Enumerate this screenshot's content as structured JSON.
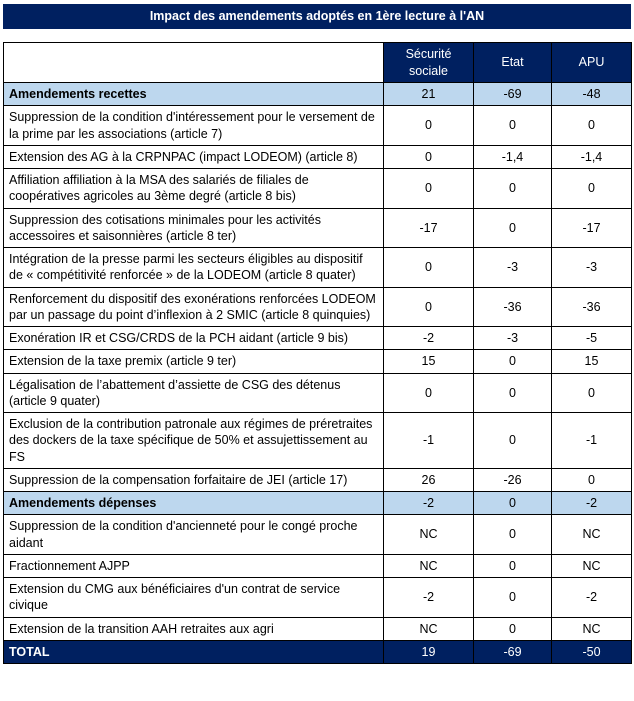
{
  "title": "Impact des amendements adoptés en 1ère lecture à l'AN",
  "colors": {
    "header_navy": "#002060",
    "section_blue": "#BDD7EE",
    "border_black": "#000000"
  },
  "table": {
    "columns": [
      "Sécurité sociale",
      "Etat",
      "APU"
    ],
    "rows": [
      {
        "type": "section",
        "label": "Amendements recettes",
        "values": [
          "21",
          "-69",
          "-48"
        ]
      },
      {
        "type": "normal",
        "label": "Suppression de la condition d'intéressement pour le versement de la prime par les associations (article 7)",
        "values": [
          "0",
          "0",
          "0"
        ]
      },
      {
        "type": "normal",
        "label": "Extension des AG à la CRPNPAC (impact LODEOM) (article 8)",
        "values": [
          "0",
          "-1,4",
          "-1,4"
        ]
      },
      {
        "type": "normal",
        "label": "Affiliation affiliation à la MSA des salariés de filiales de coopératives agricoles au 3ème degré (article 8 bis)",
        "values": [
          "0",
          "0",
          "0"
        ]
      },
      {
        "type": "normal",
        "label": "Suppression des cotisations minimales pour les activités accessoires et saisonnières (article 8 ter)",
        "values": [
          "-17",
          "0",
          "-17"
        ]
      },
      {
        "type": "normal",
        "label": "Intégration de la presse parmi les secteurs éligibles au dispositif de « compétitivité renforcée » de la LODEOM (article 8 quater)",
        "values": [
          "0",
          "-3",
          "-3"
        ]
      },
      {
        "type": "normal",
        "label": "Renforcement du dispositif des exonérations renforcées LODEOM par un passage du point d’inflexion à 2 SMIC (article 8 quinquies)",
        "values": [
          "0",
          "-36",
          "-36"
        ]
      },
      {
        "type": "normal",
        "label": "Exonération IR et CSG/CRDS de la PCH aidant (article 9 bis)",
        "values": [
          "-2",
          "-3",
          "-5"
        ]
      },
      {
        "type": "normal",
        "label": "Extension de la taxe premix (article 9 ter)",
        "values": [
          "15",
          "0",
          "15"
        ]
      },
      {
        "type": "normal",
        "label": "Légalisation de l’abattement d’assiette de CSG des détenus (article 9 quater)",
        "values": [
          "0",
          "0",
          "0"
        ]
      },
      {
        "type": "normal",
        "label": "Exclusion de la contribution patronale aux régimes de préretraites des dockers de la taxe spécifique de 50% et assujettissement au FS",
        "values": [
          "-1",
          "0",
          "-1"
        ]
      },
      {
        "type": "normal",
        "label": "Suppression de la compensation forfaitaire de JEI (article 17)",
        "values": [
          "26",
          "-26",
          "0"
        ]
      },
      {
        "type": "section",
        "label": "Amendements dépenses",
        "values": [
          "-2",
          "0",
          "-2"
        ]
      },
      {
        "type": "normal",
        "label": "Suppression de la condition d'ancienneté pour le congé proche aidant",
        "values": [
          "NC",
          "0",
          "NC"
        ]
      },
      {
        "type": "normal",
        "label": "Fractionnement AJPP",
        "values": [
          "NC",
          "0",
          "NC"
        ]
      },
      {
        "type": "normal",
        "label": "Extension du CMG aux bénéficiaires d'un contrat de service civique",
        "values": [
          "-2",
          "0",
          "-2"
        ]
      },
      {
        "type": "normal",
        "label": "Extension de la transition AAH retraites aux agri",
        "values": [
          "NC",
          "0",
          "NC"
        ]
      },
      {
        "type": "total",
        "label": "TOTAL",
        "values": [
          "19",
          "-69",
          "-50"
        ]
      }
    ]
  }
}
